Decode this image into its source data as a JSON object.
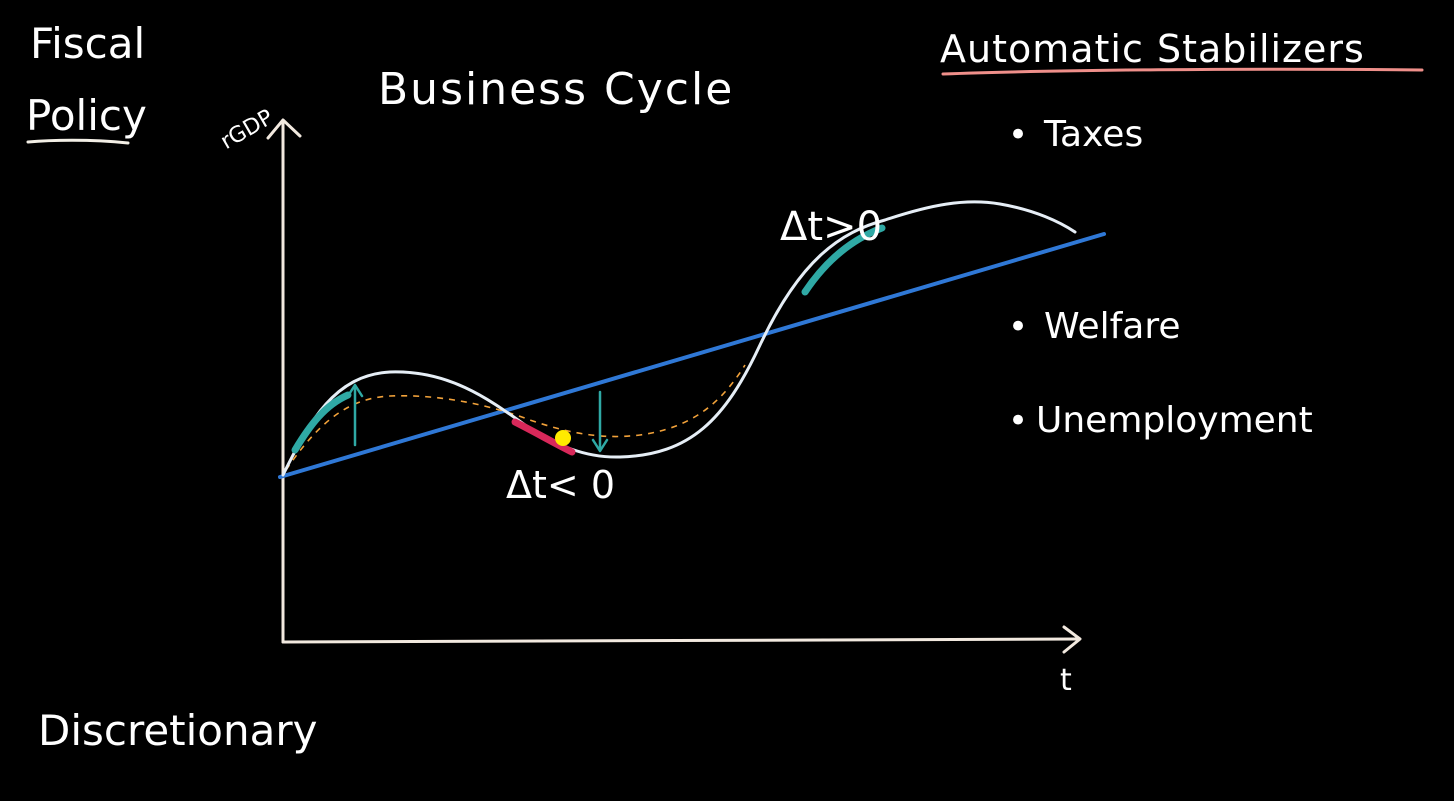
{
  "board": {
    "left_title_line1": "Fiscal",
    "left_title_line2": "Policy",
    "bottom_left": "Discretionary",
    "diagram_title": "Business Cycle",
    "y_axis_label": "rGDP",
    "x_axis_label": "t",
    "delta_positive": "Δt>0",
    "delta_negative": "Δt< 0",
    "right_header": "Automatic Stabilizers",
    "stabilizers": [
      {
        "bullet": "•",
        "label": "Taxes"
      },
      {
        "bullet": "•",
        "label": "Welfare"
      },
      {
        "bullet": "•",
        "label": "Unemployment"
      }
    ]
  },
  "colors": {
    "background": "#000000",
    "chalk_white": "#f3efe6",
    "axis": "#f2e9df",
    "title_blue": "#cfe3f6",
    "trend_blue": "#2f78d6",
    "curve": "#e6eef6",
    "teal": "#2fa9a5",
    "crimson": "#d8285a",
    "orange": "#f2a23a",
    "salmon": "#ef8f8a",
    "yellow_dot": "#ffeb00"
  }
}
